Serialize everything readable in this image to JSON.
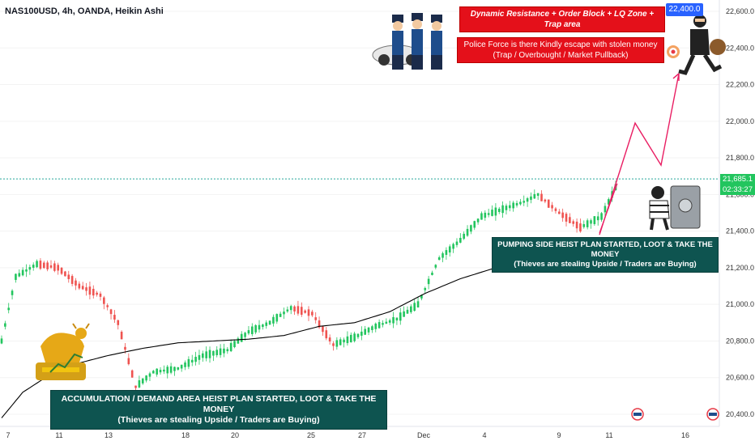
{
  "header": {
    "symbol_line": "NAS100USD, 4h, OANDA, Heikin Ashi"
  },
  "colors": {
    "up": "#26a69a",
    "upbright": "#22c55e",
    "down": "#ef5350",
    "ma": "#000000",
    "annot": "#e91e63",
    "teal": "#0e5450",
    "red": "#e4101a",
    "blue": "#2962ff"
  },
  "annotations": {
    "bottom_left_line1": "ACCUMULATION / DEMAND AREA HEIST PLAN STARTED, LOOT & TAKE THE MONEY",
    "bottom_left_line2": "(Thieves are stealing Upside / Traders are Buying)",
    "right_line1": "PUMPING SIDE HEIST PLAN STARTED, LOOT & TAKE THE MONEY",
    "right_line2": "(Thieves are stealing Upside / Traders are Buying)",
    "top_red1": "Dynamic Resistance + Order Block + LQ Zone + Trap area",
    "top_red2_line1": "Police Force is there Kindly escape with stolen money",
    "top_red2_line2": "(Trap / Overbought / Market Pullback)",
    "target_label": "22,400.0",
    "current_price": "21,685.1",
    "countdown": "02:33:27"
  },
  "chart_data": {
    "type": "candlestick",
    "title": "NAS100USD, 4h, OANDA, Heikin Ashi",
    "ylim": [
      20350,
      22700
    ],
    "y_ticks": [
      "22,600.0",
      "22,400.0",
      "22,200.0",
      "22,000.0",
      "21,800.0",
      "21,600.0",
      "21,400.0",
      "21,200.0",
      "21,000.0",
      "20,800.0",
      "20,600.0",
      "20,400.0"
    ],
    "x_ticks": [
      "7",
      "11",
      "13",
      "18",
      "20",
      "25",
      "27",
      "Dec",
      "4",
      "9",
      "11",
      "16"
    ],
    "target_price": 22400,
    "current_price": 21685.1,
    "price_path": [
      [
        0,
        20800
      ],
      [
        4,
        21150
      ],
      [
        10,
        21220
      ],
      [
        16,
        21200
      ],
      [
        22,
        21100
      ],
      [
        28,
        21050
      ],
      [
        33,
        20900
      ],
      [
        38,
        20550
      ],
      [
        43,
        20630
      ],
      [
        50,
        20650
      ],
      [
        57,
        20720
      ],
      [
        64,
        20750
      ],
      [
        70,
        20850
      ],
      [
        76,
        20900
      ],
      [
        82,
        20980
      ],
      [
        88,
        20950
      ],
      [
        94,
        20780
      ],
      [
        100,
        20820
      ],
      [
        106,
        20880
      ],
      [
        112,
        20920
      ],
      [
        118,
        21000
      ],
      [
        124,
        21250
      ],
      [
        130,
        21350
      ],
      [
        136,
        21480
      ],
      [
        142,
        21520
      ],
      [
        148,
        21560
      ],
      [
        152,
        21600
      ],
      [
        158,
        21500
      ],
      [
        164,
        21420
      ],
      [
        170,
        21480
      ],
      [
        174,
        21640
      ]
    ],
    "ma_path": [
      [
        0,
        20380
      ],
      [
        6,
        20520
      ],
      [
        14,
        20620
      ],
      [
        22,
        20680
      ],
      [
        30,
        20720
      ],
      [
        40,
        20760
      ],
      [
        50,
        20790
      ],
      [
        60,
        20800
      ],
      [
        70,
        20810
      ],
      [
        80,
        20830
      ],
      [
        90,
        20880
      ],
      [
        100,
        20900
      ],
      [
        110,
        20960
      ],
      [
        120,
        21060
      ],
      [
        130,
        21140
      ],
      [
        140,
        21200
      ],
      [
        150,
        21250
      ],
      [
        160,
        21290
      ],
      [
        170,
        21330
      ],
      [
        174,
        21340
      ]
    ],
    "projection": [
      21380,
      21990,
      21760,
      22260
    ]
  }
}
